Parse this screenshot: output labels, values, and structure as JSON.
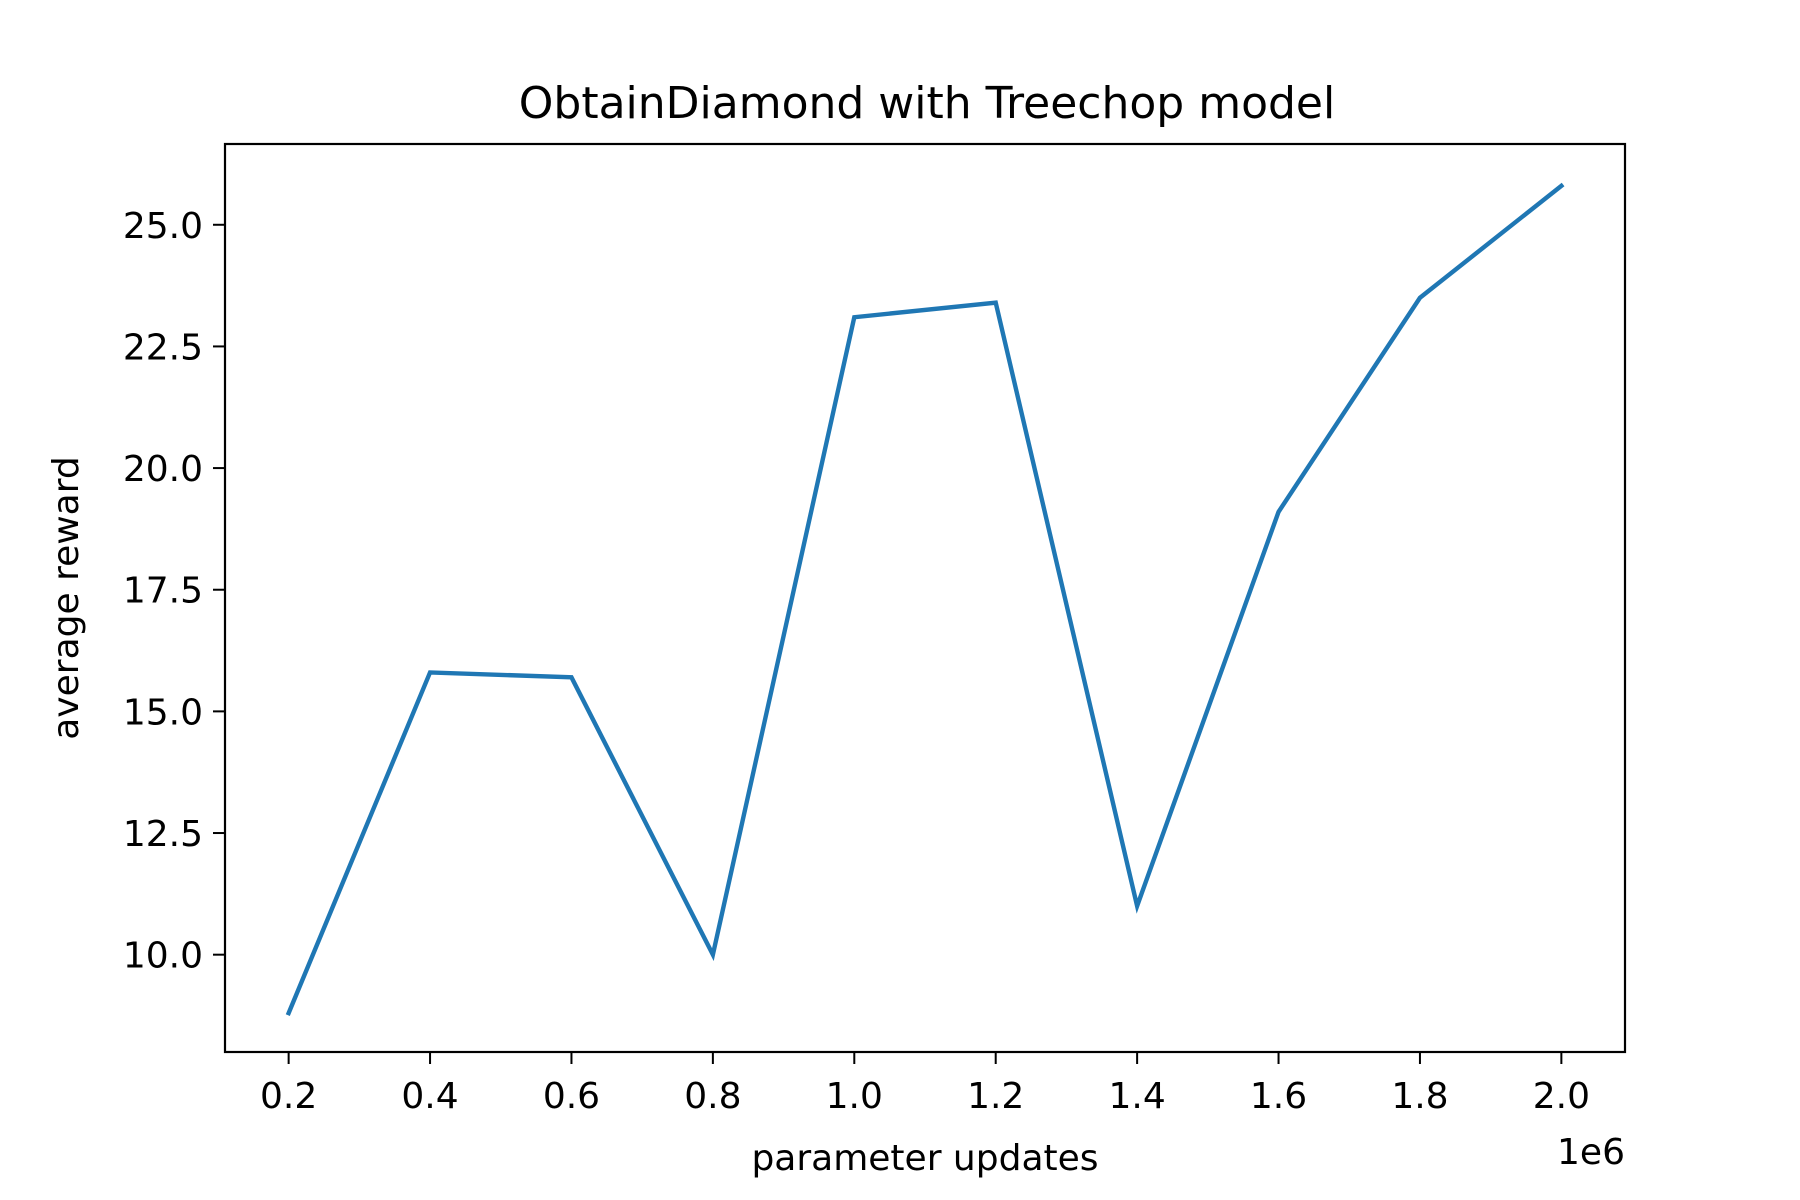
{
  "chart_data": {
    "type": "line",
    "title": "ObtainDiamond with Treechop model",
    "xlabel": "parameter updates",
    "ylabel": "average reward",
    "x_offset_label": "1e6",
    "x": [
      0.2,
      0.4,
      0.6,
      0.8,
      1.0,
      1.2,
      1.4,
      1.6,
      1.8,
      2.0
    ],
    "x_tick_values": [
      0.2,
      0.4,
      0.6,
      0.8,
      1.0,
      1.2,
      1.4,
      1.6,
      1.8,
      2.0
    ],
    "x_tick_labels": [
      "0.2",
      "0.4",
      "0.6",
      "0.8",
      "1.0",
      "1.2",
      "1.4",
      "1.6",
      "1.8",
      "2.0"
    ],
    "y_tick_values": [
      10.0,
      12.5,
      15.0,
      17.5,
      20.0,
      22.5,
      25.0
    ],
    "y_tick_labels": [
      "10.0",
      "12.5",
      "15.0",
      "17.5",
      "20.0",
      "22.5",
      "25.0"
    ],
    "xlim": [
      0.11,
      2.09
    ],
    "ylim": [
      8.0,
      26.66
    ],
    "grid": false,
    "series": [
      {
        "name": "",
        "color": "#1f77b4",
        "values": [
          8.8,
          15.8,
          15.7,
          10.0,
          23.1,
          23.4,
          11.0,
          19.1,
          23.5,
          25.8
        ]
      }
    ]
  }
}
